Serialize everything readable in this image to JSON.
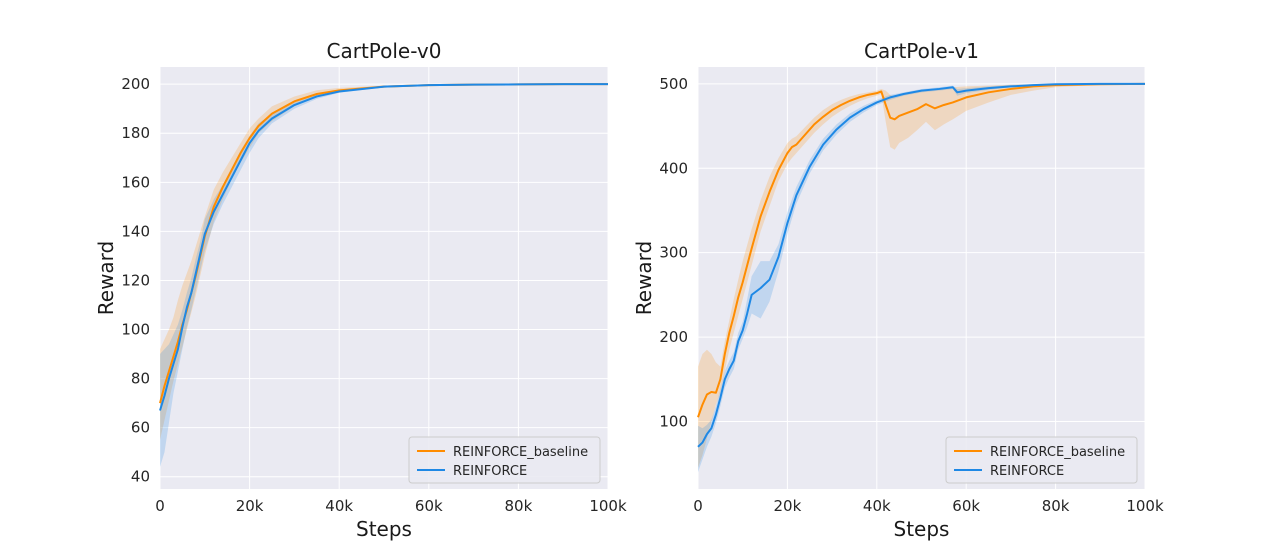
{
  "chart_data": [
    {
      "type": "line",
      "title": "CartPole-v0",
      "xlabel": "Steps",
      "ylabel": "Reward",
      "xlim": [
        0,
        100000
      ],
      "ylim": [
        35,
        207
      ],
      "xticks": [
        0,
        20000,
        40000,
        60000,
        80000,
        100000
      ],
      "xtick_labels": [
        "0",
        "20k",
        "40k",
        "60k",
        "80k",
        "100k"
      ],
      "yticks": [
        40,
        60,
        80,
        100,
        120,
        140,
        160,
        180,
        200
      ],
      "ytick_labels": [
        "40",
        "60",
        "80",
        "100",
        "120",
        "140",
        "160",
        "180",
        "200"
      ],
      "grid": true,
      "legend": "bottom-right",
      "series": [
        {
          "name": "REINFORCE_baseline",
          "color": "#ff8c00",
          "x": [
            0,
            1000,
            2000,
            3000,
            4000,
            5000,
            6000,
            7000,
            8000,
            9000,
            10000,
            12000,
            14000,
            16000,
            18000,
            20000,
            22000,
            25000,
            30000,
            35000,
            40000,
            50000,
            60000,
            70000,
            80000,
            90000,
            100000
          ],
          "y": [
            70,
            77,
            83,
            89,
            95,
            102,
            108,
            115,
            122,
            130,
            138,
            150,
            158,
            165,
            172,
            178,
            183,
            188,
            193,
            196,
            197.5,
            199,
            199.6,
            199.8,
            199.9,
            200,
            200
          ],
          "lower": [
            55,
            63,
            71,
            79,
            86,
            93,
            100,
            107,
            114,
            122,
            130,
            144,
            153,
            161,
            168,
            174,
            180,
            185,
            191,
            195,
            197,
            198.6,
            199.4,
            199.7,
            199.9,
            200,
            200
          ],
          "upper": [
            92,
            96,
            100,
            105,
            112,
            118,
            123,
            128,
            134,
            140,
            146,
            157,
            164,
            170,
            176,
            182,
            186,
            191,
            195,
            197.5,
            198.5,
            199.4,
            199.8,
            199.9,
            200,
            200,
            200
          ]
        },
        {
          "name": "REINFORCE",
          "color": "#1e88e5",
          "x": [
            0,
            1000,
            2000,
            3000,
            4000,
            5000,
            6000,
            7000,
            8000,
            9000,
            10000,
            12000,
            14000,
            16000,
            18000,
            20000,
            22000,
            25000,
            30000,
            35000,
            40000,
            50000,
            60000,
            70000,
            80000,
            90000,
            100000
          ],
          "y": [
            67,
            73,
            80,
            86,
            92,
            101,
            109,
            115,
            123,
            131,
            139,
            148,
            155,
            162,
            169,
            176,
            181,
            186,
            191.5,
            195,
            197,
            199,
            199.6,
            199.8,
            199.9,
            200,
            200
          ],
          "lower": [
            44,
            50,
            62,
            74,
            83,
            92,
            101,
            108,
            116,
            124,
            132,
            143,
            151,
            158,
            165,
            172,
            178,
            184,
            190,
            194,
            196.5,
            198.7,
            199.4,
            199.7,
            199.9,
            200,
            200
          ],
          "upper": [
            90,
            92,
            94,
            98,
            102,
            108,
            115,
            121,
            129,
            136,
            145,
            153,
            159,
            166,
            173,
            179,
            184,
            188,
            193,
            196,
            197.6,
            199.3,
            199.8,
            199.9,
            200,
            200,
            200
          ]
        }
      ]
    },
    {
      "type": "line",
      "title": "CartPole-v1",
      "xlabel": "Steps",
      "ylabel": "Reward",
      "xlim": [
        0,
        100000
      ],
      "ylim": [
        20,
        520
      ],
      "xticks": [
        0,
        20000,
        40000,
        60000,
        80000,
        100000
      ],
      "xtick_labels": [
        "0",
        "20k",
        "40k",
        "60k",
        "80k",
        "100k"
      ],
      "yticks": [
        100,
        200,
        300,
        400,
        500
      ],
      "ytick_labels": [
        "100",
        "200",
        "300",
        "400",
        "500"
      ],
      "grid": true,
      "legend": "bottom-right",
      "series": [
        {
          "name": "REINFORCE_baseline",
          "color": "#ff8c00",
          "x": [
            0,
            1000,
            2000,
            3000,
            4000,
            5000,
            6000,
            7000,
            8000,
            9000,
            10000,
            12000,
            14000,
            16000,
            18000,
            20000,
            21000,
            22000,
            24000,
            26000,
            28000,
            30000,
            32000,
            34000,
            36000,
            38000,
            40000,
            41000,
            42000,
            43000,
            44000,
            45000,
            47000,
            49000,
            51000,
            53000,
            55000,
            57000,
            60000,
            65000,
            70000,
            75000,
            80000,
            90000,
            100000
          ],
          "y": [
            105,
            120,
            132,
            135,
            134,
            150,
            180,
            205,
            225,
            247,
            265,
            305,
            343,
            372,
            398,
            418,
            425,
            428,
            440,
            452,
            461,
            469,
            475,
            480,
            484,
            487,
            489,
            491,
            475,
            460,
            458,
            462,
            466,
            470,
            476,
            471,
            475,
            478,
            484,
            490,
            494,
            497,
            498.5,
            499.5,
            500
          ],
          "lower": [
            45,
            60,
            80,
            100,
            120,
            135,
            160,
            185,
            205,
            225,
            245,
            285,
            325,
            355,
            385,
            405,
            412,
            418,
            430,
            442,
            452,
            461,
            468,
            474,
            479,
            483,
            486,
            488,
            455,
            425,
            422,
            430,
            436,
            445,
            455,
            445,
            452,
            458,
            468,
            478,
            487,
            492,
            496,
            499,
            500
          ],
          "upper": [
            165,
            180,
            185,
            180,
            170,
            165,
            195,
            220,
            245,
            268,
            290,
            328,
            362,
            390,
            412,
            430,
            435,
            438,
            449,
            460,
            469,
            476,
            481,
            485,
            488,
            490,
            492,
            494,
            492,
            487,
            485,
            487,
            489,
            491,
            493,
            494,
            495,
            496,
            497,
            498,
            499,
            499.5,
            500,
            500,
            500
          ]
        },
        {
          "name": "REINFORCE",
          "color": "#1e88e5",
          "x": [
            0,
            1000,
            2000,
            3000,
            4000,
            5000,
            6000,
            7000,
            8000,
            9000,
            10000,
            11000,
            12000,
            14000,
            16000,
            18000,
            20000,
            22000,
            25000,
            28000,
            31000,
            34000,
            37000,
            40000,
            43000,
            46000,
            50000,
            54000,
            57000,
            58000,
            60000,
            65000,
            70000,
            75000,
            80000,
            90000,
            100000
          ],
          "y": [
            70,
            75,
            85,
            92,
            108,
            128,
            150,
            162,
            172,
            195,
            208,
            228,
            250,
            258,
            268,
            295,
            335,
            368,
            402,
            428,
            446,
            460,
            470,
            478,
            484,
            488,
            492,
            494,
            496,
            490,
            492,
            495,
            497,
            498.5,
            499.5,
            500,
            500
          ],
          "lower": [
            40,
            55,
            70,
            82,
            98,
            118,
            140,
            152,
            162,
            185,
            198,
            212,
            228,
            222,
            242,
            278,
            322,
            358,
            394,
            421,
            440,
            455,
            466,
            475,
            481,
            486,
            490,
            492,
            494,
            486,
            489,
            493,
            496,
            498,
            499,
            500,
            500
          ],
          "upper": [
            95,
            92,
            96,
            102,
            118,
            138,
            160,
            172,
            182,
            205,
            218,
            245,
            272,
            290,
            290,
            310,
            348,
            378,
            410,
            435,
            452,
            465,
            474,
            481,
            487,
            490,
            494,
            496,
            498,
            494,
            495,
            497,
            499,
            499.5,
            500,
            500,
            500
          ]
        }
      ]
    }
  ]
}
